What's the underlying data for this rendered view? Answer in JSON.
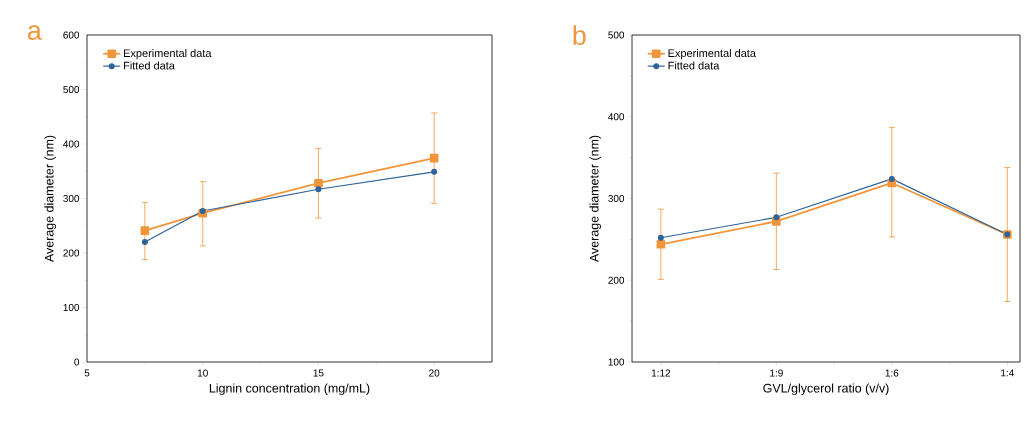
{
  "chart_data": [
    {
      "type": "line",
      "xlabel": "Lignin concentration (mg/mL)",
      "ylabel": "Average diameter (nm)",
      "annotations": [
        "a"
      ],
      "x": [
        7.5,
        10,
        15,
        20
      ],
      "xlim": [
        5,
        22.5
      ],
      "xticks": [
        5,
        10,
        15,
        20
      ],
      "ylim": [
        0,
        600
      ],
      "yticks": [
        0,
        100,
        200,
        300,
        400,
        500,
        600
      ],
      "legend": "top left",
      "series": [
        {
          "name": "Experimental data",
          "color": "#f0953a",
          "marker": "square",
          "values": [
            241,
            273,
            328,
            374
          ],
          "errors": [
            [
              188,
              293
            ],
            [
              213,
              331
            ],
            [
              264,
              392
            ],
            [
              291,
              457
            ]
          ]
        },
        {
          "name": "Fitted data",
          "color": "#2e6399",
          "marker": "circle",
          "values": [
            220,
            277,
            317,
            349
          ]
        }
      ]
    },
    {
      "type": "line",
      "xlabel": "GVL/glycerol ratio (v/v)",
      "ylabel": "Average diameter (nm)",
      "annotations": [
        "b"
      ],
      "categories": [
        "1:12",
        "1:9",
        "1:6",
        "1:4"
      ],
      "ylim": [
        100,
        500
      ],
      "yticks": [
        100,
        200,
        300,
        400,
        500
      ],
      "legend": "top left",
      "series": [
        {
          "name": "Experimental data",
          "color": "#f0953a",
          "marker": "square",
          "values": [
            244,
            272,
            319,
            256
          ],
          "errors": [
            [
              201,
              287
            ],
            [
              213,
              331
            ],
            [
              253,
              387
            ],
            [
              174,
              338
            ]
          ]
        },
        {
          "name": "Fitted data",
          "color": "#2e6399",
          "marker": "circle",
          "values": [
            252,
            277,
            324,
            256
          ]
        }
      ]
    }
  ]
}
